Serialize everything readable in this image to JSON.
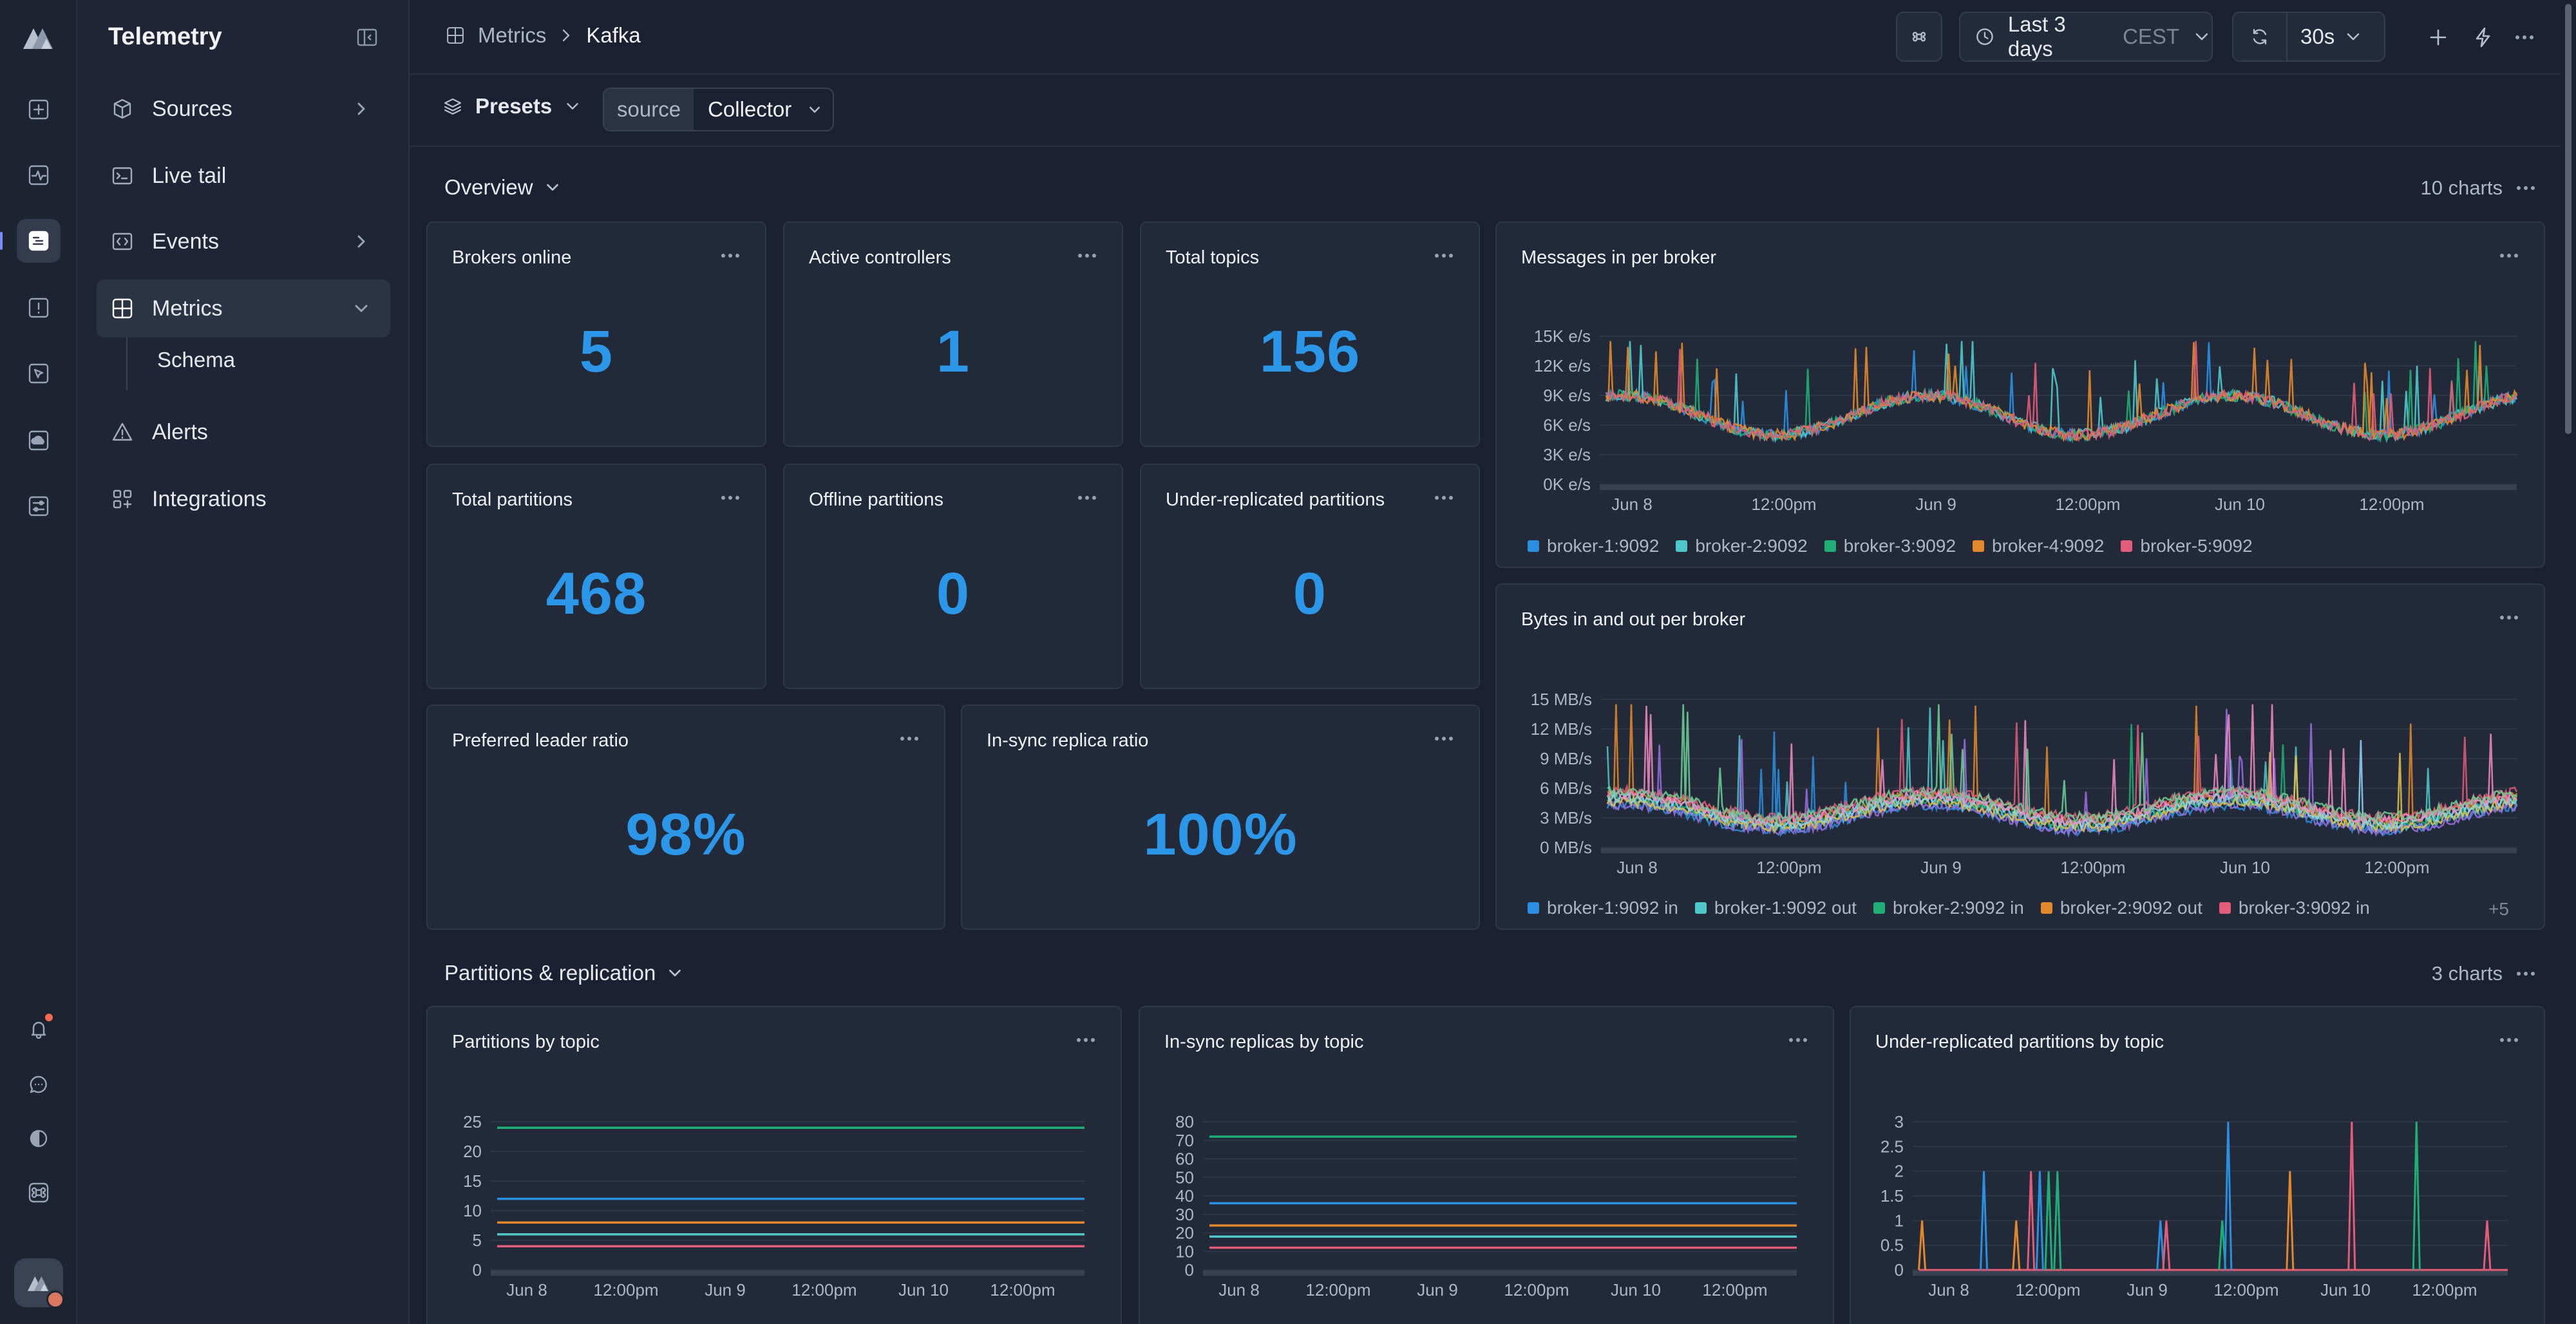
{
  "app": {
    "name": "Telemetry"
  },
  "rail": {
    "icons": [
      "logo-icon",
      "dashboard-icon",
      "activity-icon",
      "logs-icon",
      "alert-icon",
      "pointer-icon",
      "cloud-icon",
      "settings-icon",
      "bell-icon",
      "chat-icon",
      "theme-icon",
      "command-icon"
    ]
  },
  "nav": {
    "title": "Telemetry",
    "items": [
      {
        "label": "Sources",
        "icon": "box-icon"
      },
      {
        "label": "Live tail",
        "icon": "terminal-icon"
      },
      {
        "label": "Events",
        "icon": "code-icon"
      },
      {
        "label": "Metrics",
        "icon": "metrics-icon"
      },
      {
        "label": "Alerts",
        "icon": "warning-icon"
      },
      {
        "label": "Integrations",
        "icon": "grid-icon"
      }
    ],
    "sub": {
      "label": "Schema"
    }
  },
  "breadcrumb": {
    "parent": "Metrics",
    "current": "Kafka"
  },
  "toolbar": {
    "range_label": "Last 3 days",
    "timezone": "CEST",
    "refresh": "30s"
  },
  "filters": {
    "presets_label": "Presets",
    "source_key": "source",
    "source_value": "Collector"
  },
  "sections": {
    "overview": {
      "label": "Overview",
      "count": "10 charts"
    },
    "partitions": {
      "label": "Partitions & replication",
      "count": "3 charts"
    }
  },
  "stats": [
    {
      "title": "Brokers online",
      "value": "5"
    },
    {
      "title": "Active controllers",
      "value": "1"
    },
    {
      "title": "Total topics",
      "value": "156"
    },
    {
      "title": "Total partitions",
      "value": "468"
    },
    {
      "title": "Offline partitions",
      "value": "0"
    },
    {
      "title": "Under-replicated partitions",
      "value": "0"
    },
    {
      "title": "Preferred leader ratio",
      "value": "98%"
    },
    {
      "title": "In-sync replica ratio",
      "value": "100%"
    }
  ],
  "charts": {
    "messages": {
      "title": "Messages in per broker",
      "y_ticks": [
        "15K e/s",
        "12K e/s",
        "9K e/s",
        "6K e/s",
        "3K e/s",
        "0K e/s"
      ],
      "x_ticks": [
        "Jun 8",
        "12:00pm",
        "Jun 9",
        "12:00pm",
        "Jun 10",
        "12:00pm"
      ],
      "legend": [
        "broker-1:9092",
        "broker-2:9092",
        "broker-3:9092",
        "broker-4:9092",
        "broker-5:9092"
      ]
    },
    "bytes": {
      "title": "Bytes in and out per broker",
      "y_ticks": [
        "15 MB/s",
        "12 MB/s",
        "9 MB/s",
        "6 MB/s",
        "3 MB/s",
        "0 MB/s"
      ],
      "x_ticks": [
        "Jun 8",
        "12:00pm",
        "Jun 9",
        "12:00pm",
        "Jun 10",
        "12:00pm"
      ],
      "legend": [
        "broker-1:9092 in",
        "broker-1:9092 out",
        "broker-2:9092 in",
        "broker-2:9092 out",
        "broker-3:9092 in"
      ],
      "legend_more": "+5"
    },
    "partitions_by_topic": {
      "title": "Partitions by topic",
      "y_ticks": [
        "25",
        "20",
        "15",
        "10",
        "5",
        "0"
      ],
      "x_ticks": [
        "Jun 8",
        "12:00pm",
        "Jun 9",
        "12:00pm",
        "Jun 10",
        "12:00pm"
      ]
    },
    "isr_by_topic": {
      "title": "In-sync replicas by topic",
      "y_ticks": [
        "80",
        "70",
        "60",
        "50",
        "40",
        "30",
        "20",
        "10",
        "0"
      ],
      "x_ticks": [
        "Jun 8",
        "12:00pm",
        "Jun 9",
        "12:00pm",
        "Jun 10",
        "12:00pm"
      ]
    },
    "urp_by_topic": {
      "title": "Under-replicated partitions by topic",
      "y_ticks": [
        "3",
        "2.5",
        "2",
        "1.5",
        "1",
        "0.5",
        "0"
      ],
      "x_ticks": [
        "Jun 8",
        "12:00pm",
        "Jun 9",
        "12:00pm",
        "Jun 10",
        "12:00pm"
      ]
    }
  },
  "chart_data": [
    {
      "type": "line",
      "title": "Messages in per broker",
      "x": [
        "Jun 8",
        "12:00pm",
        "Jun 9",
        "12:00pm",
        "Jun 10",
        "12:00pm"
      ],
      "ylim": [
        0,
        15000
      ],
      "series": [
        {
          "name": "broker-1:9092",
          "color": "#2a8fe0",
          "baseline": 7000,
          "amplitude": 2000
        },
        {
          "name": "broker-2:9092",
          "color": "#4fc7c9",
          "baseline": 7000,
          "amplitude": 2000
        },
        {
          "name": "broker-3:9092",
          "color": "#1fae75",
          "baseline": 7000,
          "amplitude": 2000
        },
        {
          "name": "broker-4:9092",
          "color": "#e2882a",
          "baseline": 7000,
          "amplitude": 2000
        },
        {
          "name": "broker-5:9092",
          "color": "#e05c78",
          "baseline": 7000,
          "amplitude": 2000
        }
      ]
    },
    {
      "type": "line",
      "title": "Bytes in and out per broker",
      "x": [
        "Jun 8",
        "12:00pm",
        "Jun 9",
        "12:00pm",
        "Jun 10",
        "12:00pm"
      ],
      "ylim": [
        0,
        15
      ],
      "series": [
        {
          "name": "broker-1:9092 in",
          "color": "#2a8fe0"
        },
        {
          "name": "broker-1:9092 out",
          "color": "#4fc7c9"
        },
        {
          "name": "broker-2:9092 in",
          "color": "#1fae75"
        },
        {
          "name": "broker-2:9092 out",
          "color": "#e2882a"
        },
        {
          "name": "broker-3:9092 in",
          "color": "#e05c78"
        }
      ]
    },
    {
      "type": "line",
      "title": "Partitions by topic",
      "x": [
        "Jun 8",
        "12:00pm",
        "Jun 9",
        "12:00pm",
        "Jun 10",
        "12:00pm"
      ],
      "ylim": [
        0,
        25
      ],
      "series": [
        {
          "color": "#1fae75",
          "values": [
            24,
            24,
            24,
            24,
            24,
            24
          ]
        },
        {
          "color": "#2a8fe0",
          "values": [
            12,
            12,
            12,
            12,
            12,
            12
          ]
        },
        {
          "color": "#e2882a",
          "values": [
            8,
            8,
            8,
            8,
            8,
            8
          ]
        },
        {
          "color": "#4fc7c9",
          "values": [
            6,
            6,
            6,
            6,
            6,
            6
          ]
        },
        {
          "color": "#e05c78",
          "values": [
            4,
            4,
            4,
            4,
            4,
            4
          ]
        }
      ]
    },
    {
      "type": "line",
      "title": "In-sync replicas by topic",
      "x": [
        "Jun 8",
        "12:00pm",
        "Jun 9",
        "12:00pm",
        "Jun 10",
        "12:00pm"
      ],
      "ylim": [
        0,
        80
      ],
      "series": [
        {
          "color": "#1fae75",
          "values": [
            72,
            72,
            72,
            72,
            72,
            72
          ]
        },
        {
          "color": "#2a8fe0",
          "values": [
            36,
            36,
            36,
            36,
            36,
            36
          ]
        },
        {
          "color": "#e2882a",
          "values": [
            24,
            24,
            24,
            24,
            24,
            24
          ]
        },
        {
          "color": "#4fc7c9",
          "values": [
            18,
            18,
            18,
            18,
            18,
            18
          ]
        },
        {
          "color": "#e05c78",
          "values": [
            12,
            12,
            12,
            12,
            12,
            12
          ]
        }
      ]
    },
    {
      "type": "line",
      "title": "Under-replicated partitions by topic",
      "x": [
        "Jun 8",
        "12:00pm",
        "Jun 9",
        "12:00pm",
        "Jun 10",
        "12:00pm"
      ],
      "ylim": [
        0,
        3
      ],
      "spikes": [
        {
          "t": 0.005,
          "v": 1,
          "color": "#e2882a"
        },
        {
          "t": 0.11,
          "v": 2,
          "color": "#2a8fe0"
        },
        {
          "t": 0.165,
          "v": 1,
          "color": "#e2882a"
        },
        {
          "t": 0.19,
          "v": 2,
          "color": "#e05c78"
        },
        {
          "t": 0.205,
          "v": 2,
          "color": "#2a8fe0"
        },
        {
          "t": 0.22,
          "v": 2,
          "color": "#1fae75"
        },
        {
          "t": 0.235,
          "v": 2,
          "color": "#1fae75"
        },
        {
          "t": 0.41,
          "v": 1,
          "color": "#2a8fe0"
        },
        {
          "t": 0.42,
          "v": 1,
          "color": "#e05c78"
        },
        {
          "t": 0.515,
          "v": 1,
          "color": "#1fae75"
        },
        {
          "t": 0.525,
          "v": 3,
          "color": "#2a8fe0"
        },
        {
          "t": 0.63,
          "v": 2,
          "color": "#e2882a"
        },
        {
          "t": 0.735,
          "v": 3,
          "color": "#e05c78"
        },
        {
          "t": 0.845,
          "v": 3,
          "color": "#1fae75"
        },
        {
          "t": 0.965,
          "v": 1,
          "color": "#e05c78"
        }
      ]
    }
  ]
}
